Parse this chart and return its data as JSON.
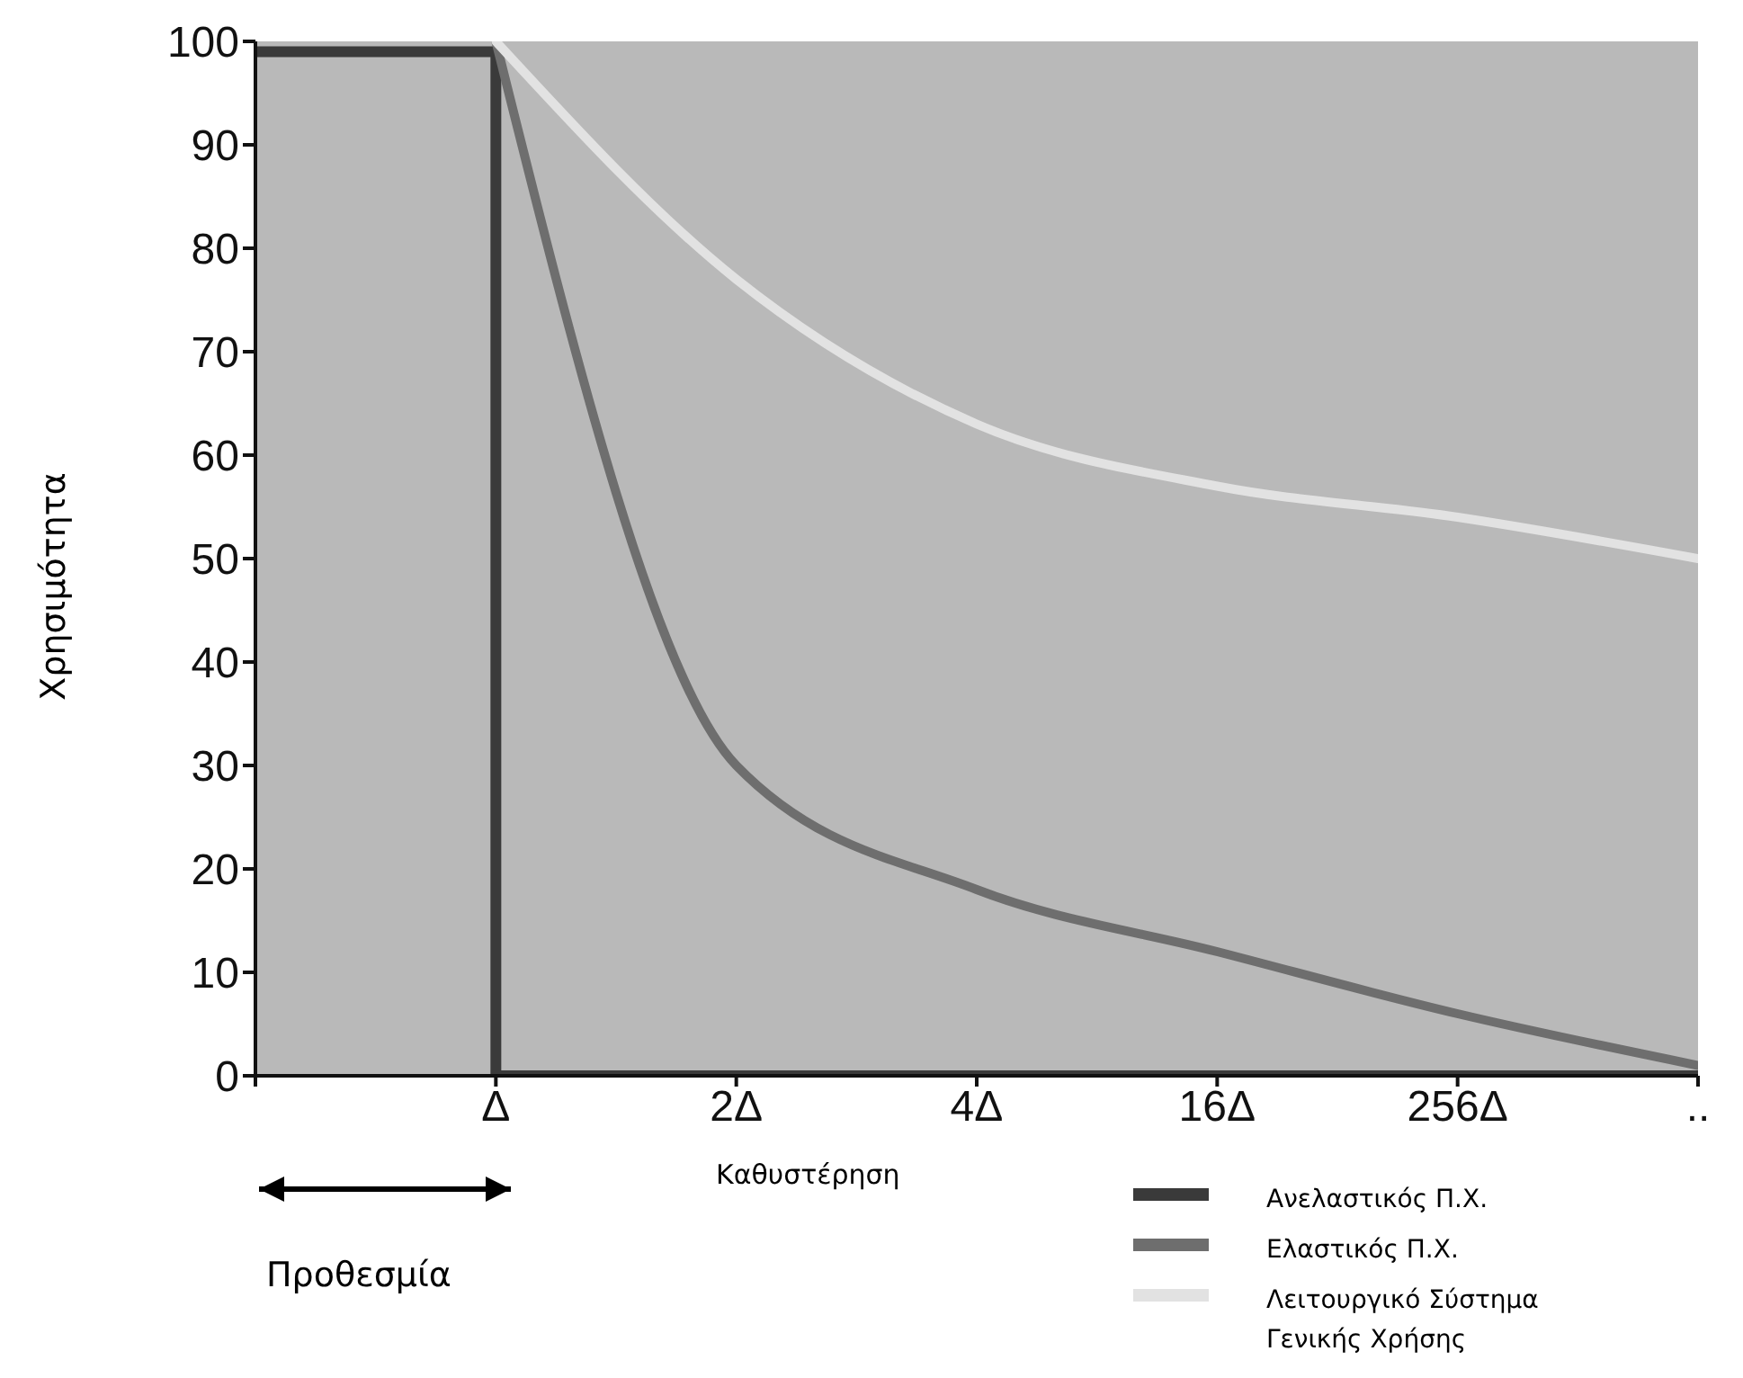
{
  "chart_data": {
    "type": "line",
    "xlabel": "Καθυστέρηση",
    "ylabel": "Χρησιμότητα",
    "ylim": [
      0,
      100
    ],
    "categories": [
      null,
      "Δ",
      "2Δ",
      "4Δ",
      "16Δ",
      "256Δ",
      ".."
    ],
    "yticks": [
      0,
      10,
      20,
      30,
      40,
      50,
      60,
      70,
      80,
      90,
      100
    ],
    "series": [
      {
        "name": "Ανελαστικός Π.Χ.",
        "type": "step",
        "color": "#3a3a3a",
        "values": [
          99,
          0,
          0,
          0,
          0,
          0,
          0
        ]
      },
      {
        "name": "Ελαστικός Π.Χ.",
        "color": "#6e6e6e",
        "values": [
          null,
          100,
          30,
          18,
          12,
          6,
          1
        ]
      },
      {
        "name": "Λειτουργικό Σύστημα Γενικής Χρήσης",
        "color": "#e2e2e2",
        "values": [
          null,
          100,
          77,
          63,
          57,
          54,
          50
        ]
      }
    ],
    "annotations": [
      "Προθεσμία"
    ],
    "grid": false,
    "legend": "bottom right",
    "marker": "none",
    "line_style": "solid"
  }
}
